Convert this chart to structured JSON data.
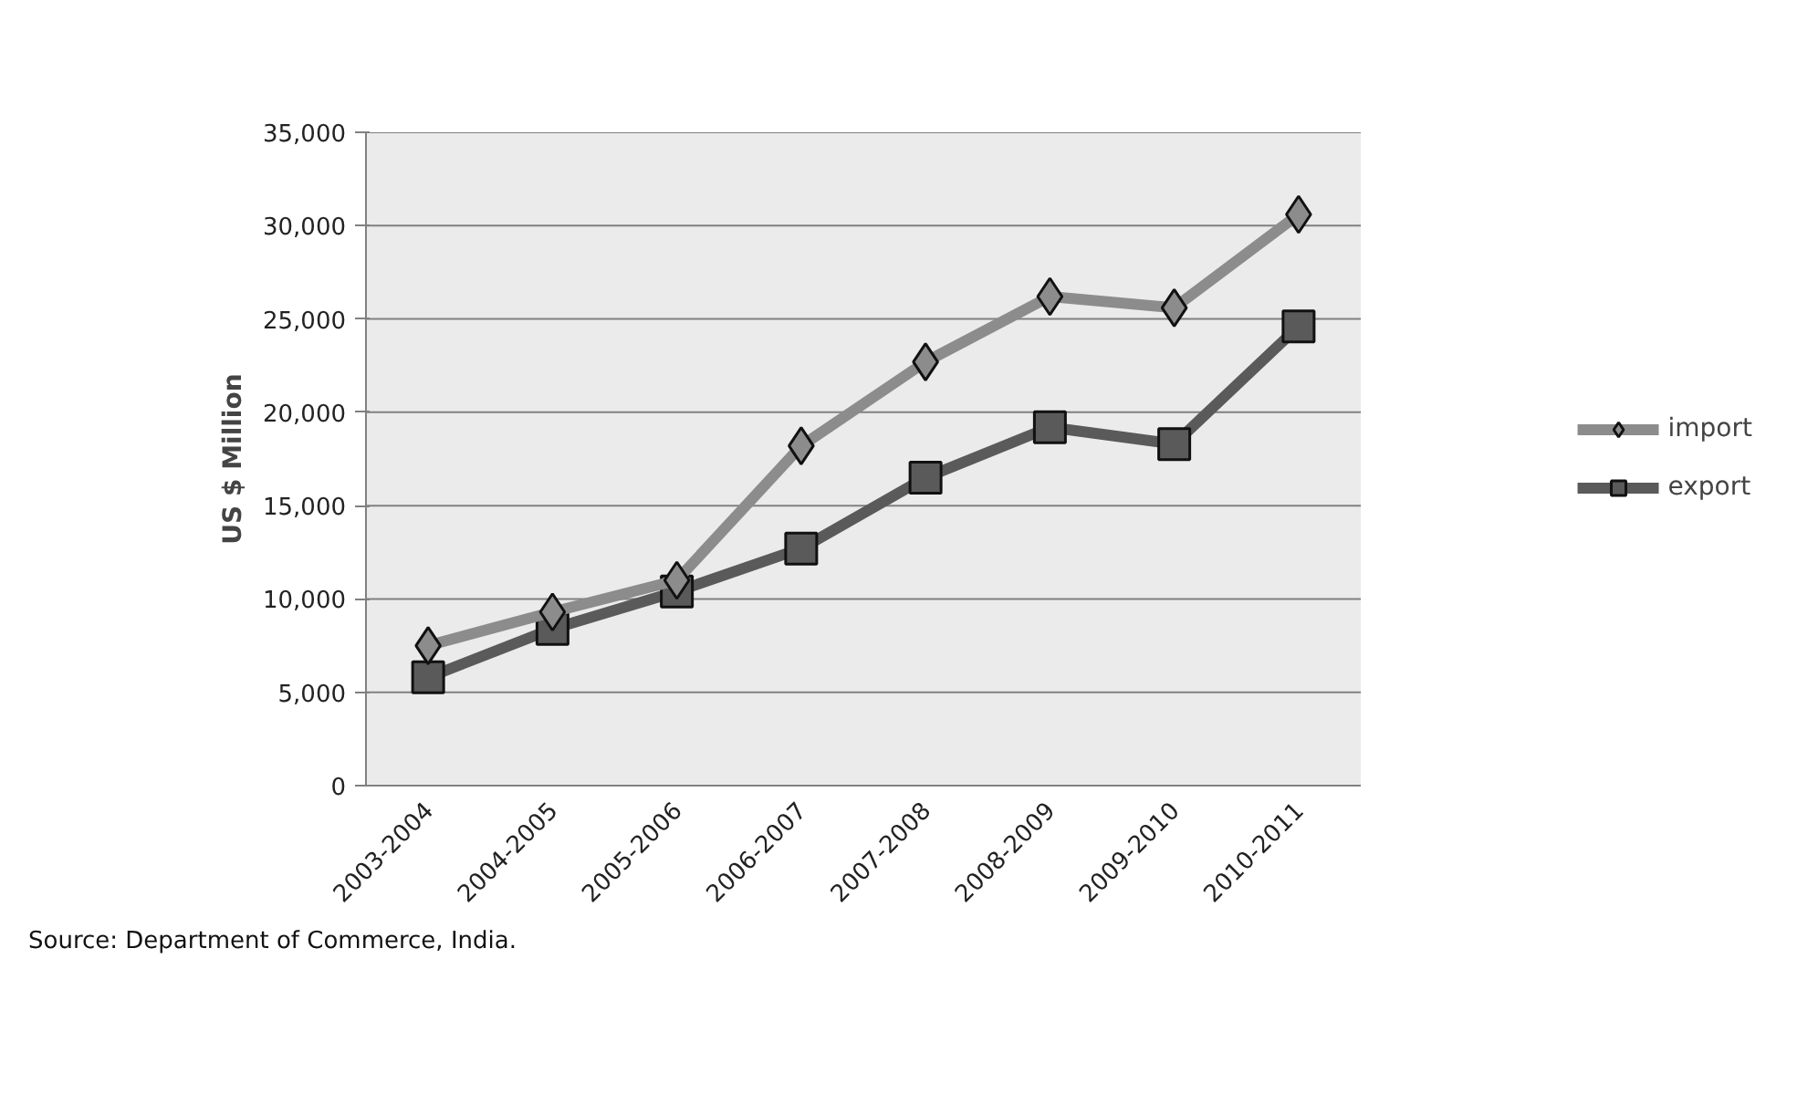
{
  "chart_data": {
    "type": "line",
    "ylabel": "US $ Million",
    "categories": [
      "2003-2004",
      "2004-2005",
      "2005-2006",
      "2006-2007",
      "2007-2008",
      "2008-2009",
      "2009-2010",
      "2010-2011"
    ],
    "series": [
      {
        "name": "import",
        "color": "#8c8c8c",
        "marker": "diamond",
        "values": [
          7500,
          9300,
          11000,
          18200,
          22700,
          26200,
          25600,
          30600
        ]
      },
      {
        "name": "export",
        "color": "#5a5a5a",
        "marker": "square",
        "values": [
          5800,
          8400,
          10400,
          12700,
          16500,
          19200,
          18300,
          24600
        ]
      }
    ],
    "ylim": [
      0,
      35000
    ],
    "yticks": [
      {
        "value": 0,
        "label": "0"
      },
      {
        "value": 5000,
        "label": "5,000"
      },
      {
        "value": 10000,
        "label": "10,000"
      },
      {
        "value": 15000,
        "label": "15,000"
      },
      {
        "value": 20000,
        "label": "20,000"
      },
      {
        "value": 25000,
        "label": "25,000"
      },
      {
        "value": 30000,
        "label": "30,000"
      },
      {
        "value": 35000,
        "label": "35,000"
      }
    ],
    "grid": "y",
    "legend": "right",
    "line_style": "solid",
    "annotations": [
      "Source: Department of Commerce, India."
    ]
  }
}
